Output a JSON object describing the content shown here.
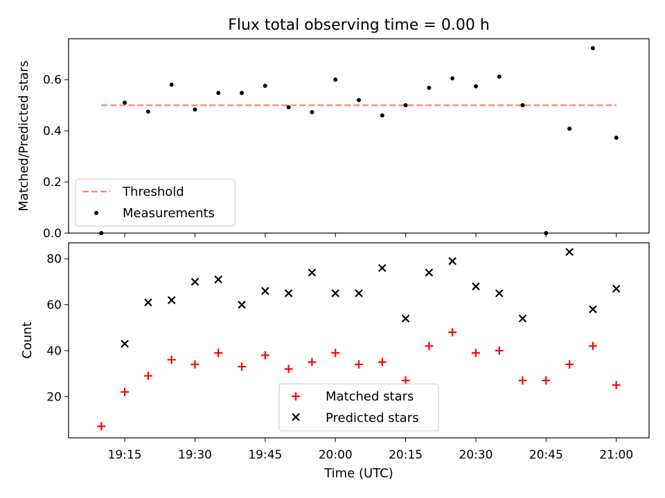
{
  "chart_data": [
    {
      "type": "scatter",
      "title": "Flux total observing time = 0.00 h",
      "xlabel": "",
      "ylabel": "Matched/Predicted stars",
      "ylim": [
        0.0,
        0.76
      ],
      "yticks": [
        "0.0",
        "0.2",
        "0.4",
        "0.6"
      ],
      "xlim": [
        "19:03",
        "21:07"
      ],
      "legend": "lower-left",
      "threshold": {
        "name": "Threshold",
        "value": 0.5,
        "x_range": [
          "19:10",
          "21:00"
        ],
        "color": "#ff7f7f",
        "style": "dashed"
      },
      "series": [
        {
          "name": "Measurements",
          "color": "#000000",
          "x": [
            "19:10",
            "19:15",
            "19:20",
            "19:25",
            "19:30",
            "19:35",
            "19:40",
            "19:45",
            "19:50",
            "19:55",
            "20:00",
            "20:05",
            "20:10",
            "20:15",
            "20:20",
            "20:25",
            "20:30",
            "20:35",
            "20:40",
            "20:45",
            "20:50",
            "20:55",
            "21:00"
          ],
          "y": [
            0.0,
            0.51,
            0.475,
            0.58,
            0.483,
            0.548,
            0.548,
            0.576,
            0.492,
            0.473,
            0.6,
            0.52,
            0.46,
            0.5,
            0.568,
            0.605,
            0.574,
            0.612,
            0.5,
            0.0,
            0.408,
            0.723,
            0.373
          ]
        }
      ]
    },
    {
      "type": "scatter",
      "title": "",
      "xlabel": "Time (UTC)",
      "ylabel": "Count",
      "ylim": [
        2,
        87
      ],
      "yticks": [
        "20",
        "40",
        "60",
        "80"
      ],
      "xlim": [
        "19:03",
        "21:07"
      ],
      "xticks": [
        "19:15",
        "19:30",
        "19:45",
        "20:00",
        "20:15",
        "20:30",
        "20:45",
        "21:00"
      ],
      "legend": "lower-center",
      "series": [
        {
          "name": "Matched stars",
          "marker": "plus",
          "color": "#ff0000",
          "x": [
            "19:10",
            "19:15",
            "19:20",
            "19:25",
            "19:30",
            "19:35",
            "19:40",
            "19:45",
            "19:50",
            "19:55",
            "20:00",
            "20:05",
            "20:10",
            "20:15",
            "20:20",
            "20:25",
            "20:30",
            "20:35",
            "20:40",
            "20:45",
            "20:50",
            "20:55",
            "21:00"
          ],
          "y": [
            7,
            22,
            29,
            36,
            34,
            39,
            33,
            38,
            32,
            35,
            39,
            34,
            35,
            27,
            42,
            48,
            39,
            40,
            27,
            27,
            34,
            42,
            25
          ]
        },
        {
          "name": "Predicted stars",
          "marker": "x",
          "color": "#000000",
          "x": [
            "19:15",
            "19:20",
            "19:25",
            "19:30",
            "19:35",
            "19:40",
            "19:45",
            "19:50",
            "19:55",
            "20:00",
            "20:05",
            "20:10",
            "20:15",
            "20:20",
            "20:25",
            "20:30",
            "20:35",
            "20:40",
            "20:50",
            "20:55",
            "21:00"
          ],
          "y": [
            43,
            61,
            62,
            70,
            71,
            60,
            66,
            65,
            74,
            65,
            65,
            76,
            54,
            74,
            79,
            68,
            65,
            54,
            83,
            58,
            67
          ]
        }
      ]
    }
  ]
}
